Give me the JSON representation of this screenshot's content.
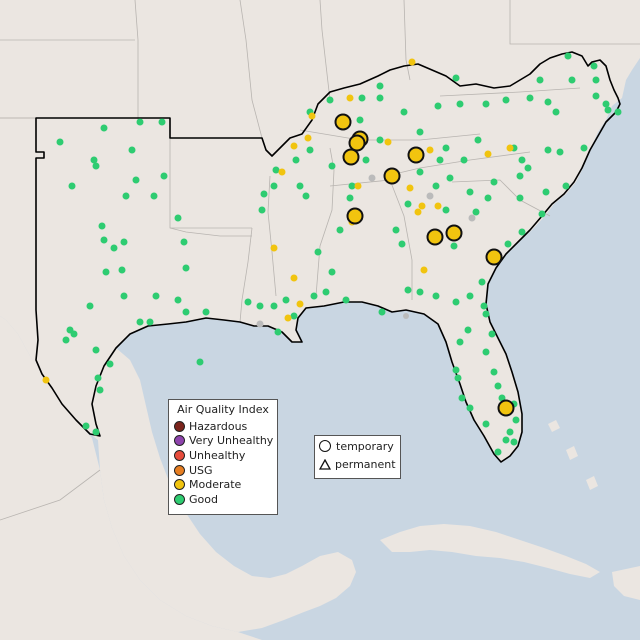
{
  "colors": {
    "ocean": "#c9d6e2",
    "land": "#ebe6e1",
    "region": "#ebe6e1",
    "border_light": "#b8b4b0",
    "border_dark": "#000000",
    "good": "#2ecc71",
    "moderate": "#f1c40f",
    "usg": "#e67e22",
    "unhealthy": "#e74c3c",
    "very_unhealthy": "#8e44ad",
    "hazardous": "#7b241c",
    "gray_station": "#bbbbbb"
  },
  "legend": {
    "title": "Air Quality Index",
    "items": [
      {
        "label": "Hazardous",
        "color": "#7b241c"
      },
      {
        "label": "Very Unhealthy",
        "color": "#8e44ad"
      },
      {
        "label": "Unhealthy",
        "color": "#e74c3c"
      },
      {
        "label": "USG",
        "color": "#e67e22"
      },
      {
        "label": "Moderate",
        "color": "#f1c40f"
      },
      {
        "label": "Good",
        "color": "#2ecc71"
      }
    ]
  },
  "monitor_types": {
    "temporary": "temporary",
    "permanent": "permanent"
  }
}
